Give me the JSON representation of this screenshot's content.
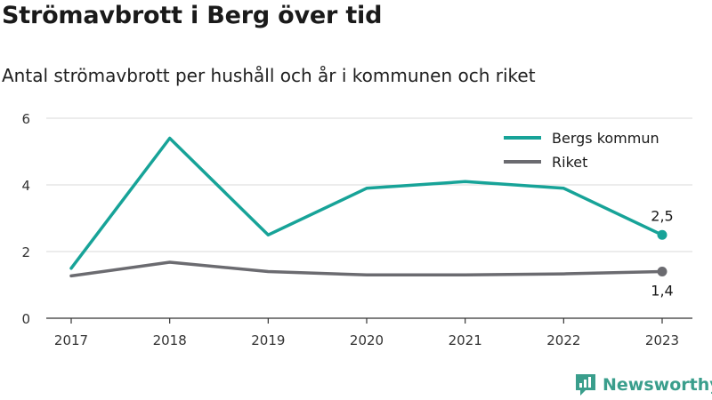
{
  "header": {
    "title": "Strömavbrott i Berg över tid",
    "subtitle": "Antal strömavbrott per hushåll och år i kommunen och riket"
  },
  "brand": {
    "name": "Newsworthy",
    "icon": "newsworthy-logo-icon",
    "color": "#3a9e8c"
  },
  "chart_data": {
    "type": "line",
    "categories": [
      "2017",
      "2018",
      "2019",
      "2020",
      "2021",
      "2022",
      "2023"
    ],
    "y_ticks": [
      "0",
      "2",
      "4",
      "6"
    ],
    "ylim": [
      0,
      6
    ],
    "grid": true,
    "legend_position": "top-right",
    "series": [
      {
        "name": "Bergs kommun",
        "color": "#17a398",
        "values": [
          1.5,
          5.4,
          2.5,
          3.9,
          4.1,
          3.9,
          2.5
        ],
        "end_label": "2,5"
      },
      {
        "name": "Riket",
        "color": "#6b6b70",
        "values": [
          1.27,
          1.68,
          1.4,
          1.3,
          1.3,
          1.33,
          1.4
        ],
        "end_label": "1,4"
      }
    ]
  }
}
